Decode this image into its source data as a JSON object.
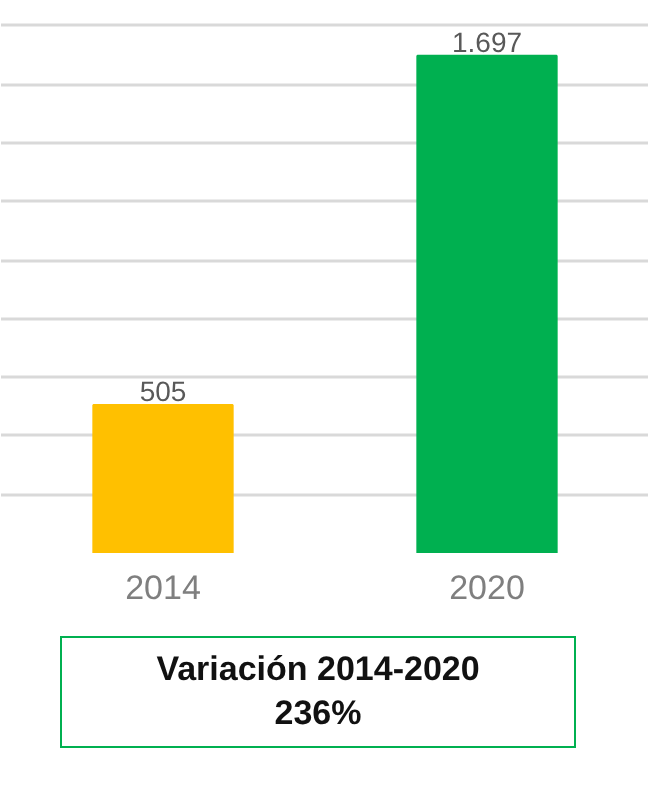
{
  "chart_data": {
    "type": "bar",
    "categories": [
      "2014",
      "2020"
    ],
    "values": [
      505,
      1697
    ],
    "colors": [
      "#ffc000",
      "#00b050"
    ],
    "value_labels": [
      "505",
      "1.697"
    ],
    "grid": "y",
    "tick_labels": "x",
    "annotations": [
      "Variación 2014-2020\n236%"
    ]
  }
}
